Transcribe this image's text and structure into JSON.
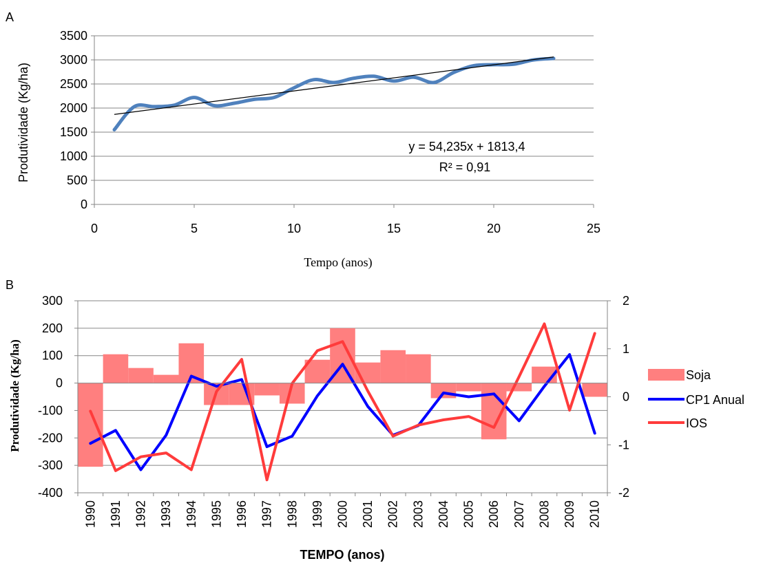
{
  "chart_data": [
    {
      "panel_label": "A",
      "type": "line",
      "xlabel": "Tempo (anos)",
      "ylabel": "Produtividade (Kg/ha)",
      "xlim": [
        0,
        25
      ],
      "ylim": [
        0,
        3500
      ],
      "x_ticks": [
        "0",
        "5",
        "10",
        "15",
        "20",
        "25"
      ],
      "y_ticks": [
        "0",
        "500",
        "1000",
        "1500",
        "2000",
        "2500",
        "3000",
        "3500"
      ],
      "grid": "horizontal",
      "series": [
        {
          "color": "#4f81bd",
          "x": [
            1,
            2,
            3,
            4,
            5,
            6,
            7,
            8,
            9,
            10,
            11,
            12,
            13,
            14,
            15,
            16,
            17,
            18,
            19,
            20,
            21,
            22,
            23
          ],
          "y": [
            1550,
            2030,
            2030,
            2060,
            2220,
            2050,
            2100,
            2180,
            2220,
            2420,
            2590,
            2530,
            2620,
            2660,
            2560,
            2640,
            2530,
            2740,
            2880,
            2900,
            2910,
            3000,
            3030
          ]
        }
      ],
      "trendline": {
        "x": [
          1,
          23
        ],
        "y": [
          1867.6,
          3060.8
        ],
        "equation": "y = 54,235x + 1813,4",
        "r2": "R² = 0,91"
      }
    },
    {
      "panel_label": "B",
      "type": "bar",
      "xlabel": "TEMPO (anos)",
      "ylabel": "Produtividade (Kg/ha)",
      "categories": [
        "1990",
        "1991",
        "1992",
        "1993",
        "1994",
        "1995",
        "1996",
        "1997",
        "1998",
        "1999",
        "2000",
        "2001",
        "2002",
        "2003",
        "2004",
        "2005",
        "2006",
        "2007",
        "2008",
        "2009",
        "2010"
      ],
      "ylim": [
        -400,
        300
      ],
      "y2lim": [
        -2,
        2
      ],
      "y_ticks": [
        "300",
        "200",
        "100",
        "0",
        "-100",
        "-200",
        "-300",
        "-400"
      ],
      "y2_ticks": [
        "2",
        "1",
        "0",
        "-1",
        "-2"
      ],
      "grid": "horizontal",
      "legend_position": "right",
      "series": [
        {
          "name": "Soja",
          "type": "bar",
          "axis": "left",
          "color": "#ff7f7f",
          "values": [
            -305,
            105,
            55,
            30,
            145,
            -80,
            -80,
            -45,
            -75,
            85,
            200,
            75,
            120,
            105,
            -55,
            -30,
            -205,
            -30,
            60,
            0,
            -50
          ]
        },
        {
          "name": "CP1 Anual",
          "type": "line",
          "axis": "right",
          "color": "#0000ff",
          "values": [
            -0.97,
            -0.7,
            -1.52,
            -0.8,
            0.43,
            0.22,
            0.36,
            -1.04,
            -0.82,
            0.02,
            0.68,
            -0.2,
            -0.8,
            -0.6,
            0.08,
            0.0,
            0.06,
            -0.5,
            0.22,
            0.88,
            -0.76
          ]
        },
        {
          "name": "IOS",
          "type": "line",
          "axis": "right",
          "color": "#ff3b3b",
          "values": [
            -0.3,
            -1.54,
            -1.25,
            -1.17,
            -1.52,
            0.11,
            0.78,
            -1.73,
            0.28,
            0.96,
            1.15,
            0.12,
            -0.82,
            -0.59,
            -0.48,
            -0.41,
            -0.64,
            0.42,
            1.52,
            -0.28,
            1.32
          ]
        }
      ]
    }
  ]
}
